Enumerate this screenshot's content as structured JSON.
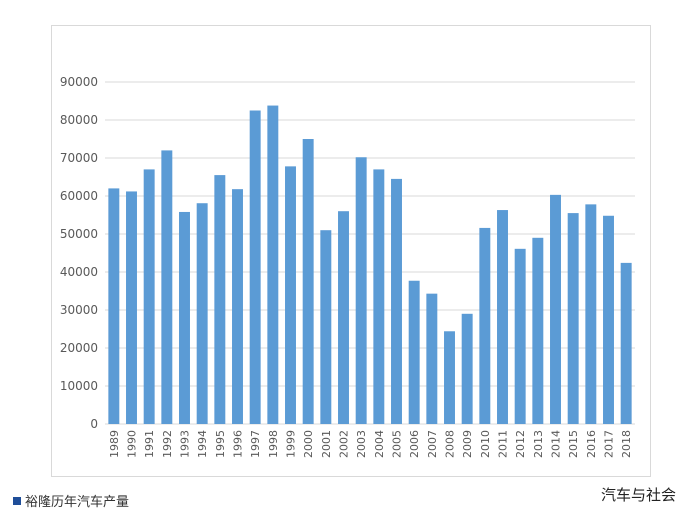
{
  "chart_data": {
    "type": "bar",
    "categories": [
      "1989",
      "1990",
      "1991",
      "1992",
      "1993",
      "1994",
      "1995",
      "1996",
      "1997",
      "1998",
      "1999",
      "2000",
      "2001",
      "2002",
      "2003",
      "2004",
      "2005",
      "2006",
      "2007",
      "2008",
      "2009",
      "2010",
      "2011",
      "2012",
      "2013",
      "2014",
      "2015",
      "2016",
      "2017",
      "2018"
    ],
    "values": [
      62000,
      61200,
      67000,
      72000,
      55800,
      58100,
      65500,
      61800,
      82500,
      83800,
      67800,
      75000,
      51000,
      56000,
      70200,
      67000,
      64500,
      37700,
      34300,
      24400,
      29000,
      51600,
      56300,
      46100,
      49000,
      60300,
      55500,
      57800,
      54800,
      42400
    ],
    "title": "",
    "xlabel": "",
    "ylabel": "",
    "ylim": [
      0,
      90000
    ],
    "yticks": [
      "0",
      "10000",
      "20000",
      "30000",
      "40000",
      "50000",
      "60000",
      "70000",
      "80000",
      "90000"
    ],
    "grid": true,
    "legend_position": "bottom-left",
    "bar_color": "#5b9bd5",
    "grid_color": "#d9d9d9",
    "series": [
      {
        "name": "裕隆历年汽车产量"
      }
    ]
  },
  "legend": {
    "label": "裕隆历年汽车产量",
    "color": "#1f4e99"
  },
  "watermark": "汽车与社会"
}
